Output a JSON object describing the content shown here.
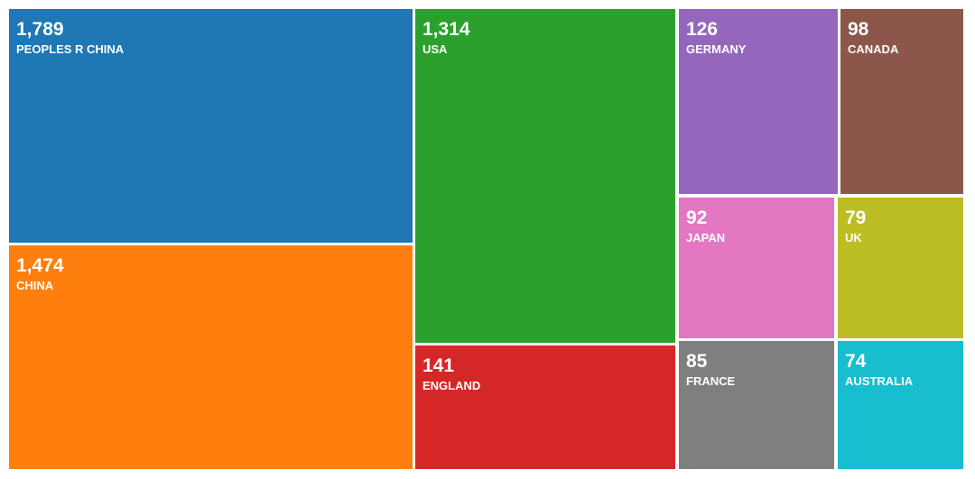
{
  "chart_data": {
    "type": "treemap",
    "categories": [
      "PEOPLES R CHINA",
      "CHINA",
      "USA",
      "ENGLAND",
      "GERMANY",
      "CANADA",
      "JAPAN",
      "UK",
      "FRANCE",
      "AUSTRALIA"
    ],
    "values": [
      1789,
      1474,
      1314,
      141,
      126,
      98,
      92,
      79,
      85,
      74
    ],
    "value_labels": [
      "1,789",
      "1,474",
      "1,314",
      "141",
      "126",
      "98",
      "92",
      "79",
      "85",
      "74"
    ],
    "colors": [
      "#1f77b4",
      "#ff7f0e",
      "#2ca02c",
      "#d62728",
      "#9467bd",
      "#8c564b",
      "#e377c2",
      "#bcbd22",
      "#7f7f7f",
      "#17becf"
    ]
  }
}
